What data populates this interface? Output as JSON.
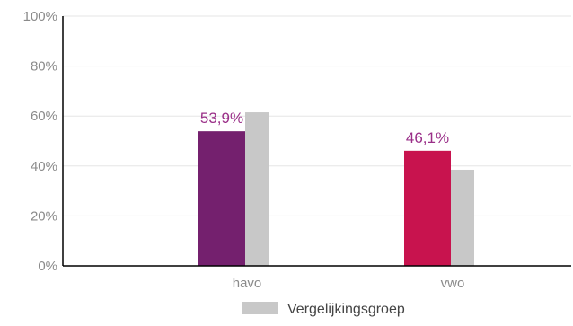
{
  "chart_data": {
    "type": "bar",
    "categories": [
      "havo",
      "vwo"
    ],
    "series": [
      {
        "values": [
          53.9,
          46.1
        ],
        "colors": [
          "#74206e",
          "#c8134e"
        ],
        "data_labels": [
          "53,9%",
          "46,1%"
        ],
        "label_color": "#9a2f88"
      },
      {
        "name": "Vergelijkingsgroep",
        "values": [
          61.5,
          38.5
        ],
        "color": "#c8c8c8"
      }
    ],
    "ylim": [
      0,
      100
    ],
    "yticks": [
      0,
      20,
      40,
      60,
      80,
      100
    ],
    "ytick_labels": [
      "0%",
      "20%",
      "40%",
      "60%",
      "80%",
      "100%"
    ],
    "grid": true,
    "gridline_color": "#e6e6e6",
    "legend_position": "bottom-center"
  }
}
